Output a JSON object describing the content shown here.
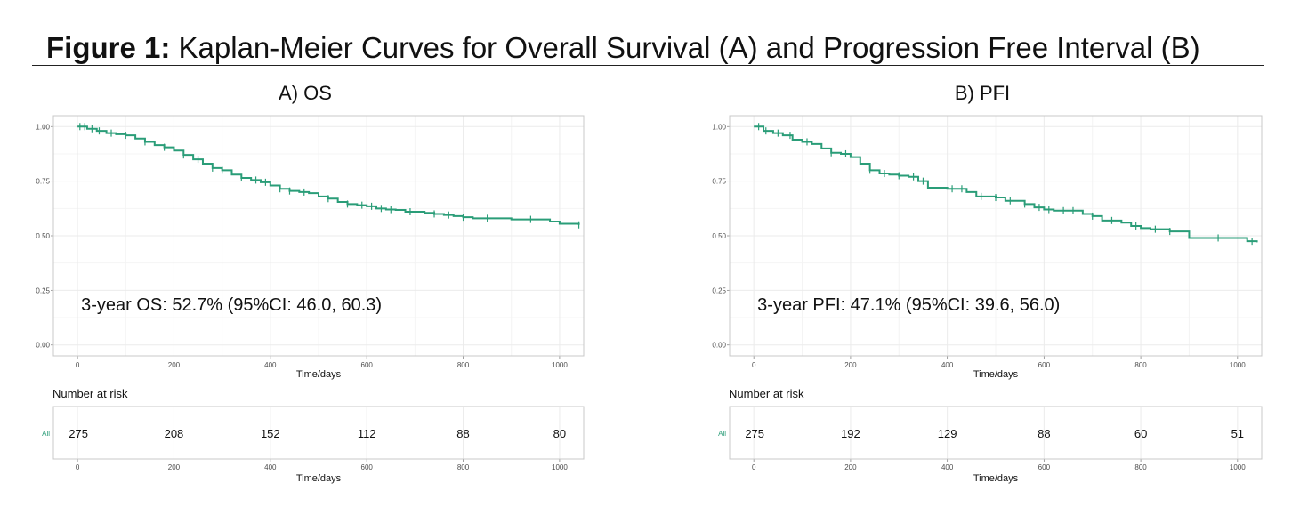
{
  "figure": {
    "title_bold": "Figure 1:",
    "title_rest": " Kaplan-Meier Curves for Overall Survival (A) and Progression Free Interval (B)"
  },
  "colors": {
    "curve": "#2a9d78",
    "grid": "#ebebeb",
    "panel_border": "#c8c8c8",
    "axis_text": "#4d4d4d"
  },
  "chart_data": [
    {
      "type": "line",
      "title": "A) OS",
      "xlabel": "Time/days",
      "ylabel": "",
      "xlim": [
        -50,
        1050
      ],
      "ylim": [
        -0.05,
        1.05
      ],
      "x_ticks": [
        0,
        200,
        400,
        600,
        800,
        1000
      ],
      "y_ticks": [
        "0.00",
        "0.25",
        "0.50",
        "0.75",
        "1.00"
      ],
      "grid": true,
      "annotation": "3-year OS: 52.7% (95%CI: 46.0, 60.3)",
      "series": [
        {
          "step": true,
          "x": [
            0,
            20,
            40,
            60,
            80,
            100,
            120,
            140,
            160,
            180,
            200,
            220,
            240,
            260,
            280,
            300,
            320,
            340,
            360,
            380,
            400,
            420,
            440,
            460,
            480,
            500,
            520,
            540,
            560,
            580,
            600,
            620,
            640,
            660,
            680,
            720,
            740,
            760,
            780,
            800,
            820,
            900,
            980,
            1000,
            1040
          ],
          "y": [
            1.0,
            0.99,
            0.98,
            0.97,
            0.965,
            0.96,
            0.945,
            0.93,
            0.915,
            0.905,
            0.89,
            0.87,
            0.85,
            0.83,
            0.81,
            0.8,
            0.78,
            0.765,
            0.755,
            0.745,
            0.73,
            0.715,
            0.705,
            0.7,
            0.695,
            0.68,
            0.67,
            0.655,
            0.645,
            0.64,
            0.635,
            0.625,
            0.62,
            0.618,
            0.61,
            0.605,
            0.6,
            0.595,
            0.59,
            0.585,
            0.58,
            0.575,
            0.565,
            0.555,
            0.55
          ],
          "censor_x": [
            5,
            15,
            30,
            45,
            70,
            100,
            140,
            180,
            220,
            250,
            280,
            300,
            340,
            370,
            390,
            420,
            440,
            470,
            520,
            560,
            590,
            610,
            630,
            650,
            690,
            740,
            770,
            800,
            850,
            940,
            1040
          ]
        }
      ],
      "risk_table": {
        "label": "Number at risk",
        "strata": "All",
        "times": [
          0,
          200,
          400,
          600,
          800,
          1000
        ],
        "counts": [
          "275",
          "208",
          "152",
          "112",
          "88",
          "80"
        ],
        "xlabel": "Time/days"
      }
    },
    {
      "type": "line",
      "title": "B) PFI",
      "xlabel": "Time/days",
      "ylabel": "",
      "xlim": [
        -50,
        1050
      ],
      "ylim": [
        -0.05,
        1.05
      ],
      "x_ticks": [
        0,
        200,
        400,
        600,
        800,
        1000
      ],
      "y_ticks": [
        "0.00",
        "0.25",
        "0.50",
        "0.75",
        "1.00"
      ],
      "grid": true,
      "annotation": "3-year PFI: 47.1% (95%CI: 39.6, 56.0)",
      "series": [
        {
          "step": true,
          "x": [
            0,
            20,
            40,
            60,
            80,
            100,
            120,
            140,
            160,
            180,
            200,
            220,
            240,
            260,
            280,
            300,
            320,
            340,
            360,
            400,
            440,
            460,
            500,
            520,
            560,
            580,
            600,
            620,
            680,
            700,
            720,
            760,
            780,
            800,
            820,
            860,
            900,
            960,
            1020,
            1040
          ],
          "y": [
            1.0,
            0.98,
            0.97,
            0.96,
            0.94,
            0.93,
            0.92,
            0.9,
            0.88,
            0.875,
            0.86,
            0.83,
            0.8,
            0.785,
            0.78,
            0.775,
            0.77,
            0.75,
            0.72,
            0.715,
            0.7,
            0.68,
            0.675,
            0.66,
            0.645,
            0.63,
            0.62,
            0.615,
            0.6,
            0.59,
            0.57,
            0.56,
            0.545,
            0.535,
            0.53,
            0.52,
            0.49,
            0.49,
            0.475,
            0.47
          ],
          "censor_x": [
            10,
            25,
            50,
            75,
            110,
            160,
            190,
            240,
            270,
            300,
            330,
            350,
            410,
            430,
            470,
            500,
            530,
            560,
            590,
            610,
            640,
            660,
            700,
            740,
            790,
            830,
            860,
            960,
            1030
          ]
        }
      ],
      "risk_table": {
        "label": "Number at risk",
        "strata": "All",
        "times": [
          0,
          200,
          400,
          600,
          800,
          1000
        ],
        "counts": [
          "275",
          "192",
          "129",
          "88",
          "60",
          "51"
        ],
        "xlabel": "Time/days"
      }
    }
  ]
}
